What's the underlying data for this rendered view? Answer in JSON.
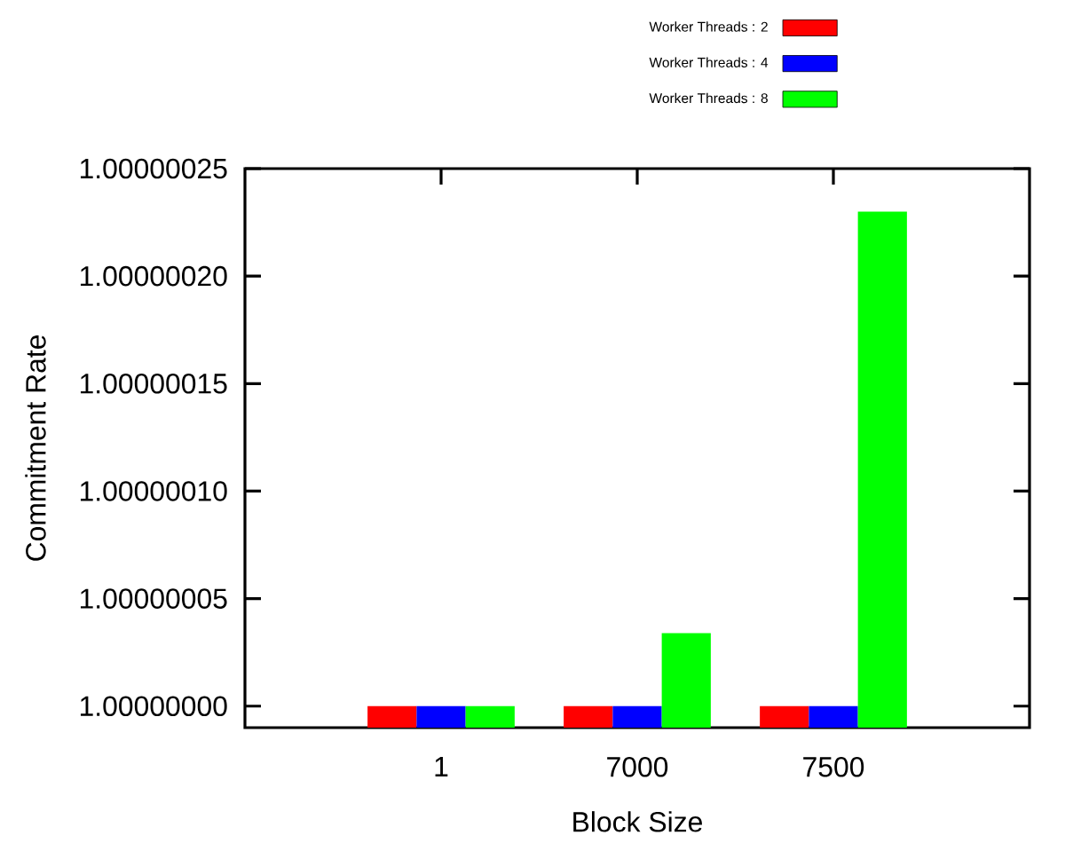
{
  "chart_data": {
    "type": "bar",
    "xlabel": "Block Size",
    "ylabel": "Commitment Rate",
    "categories": [
      "1",
      "7000",
      "7500"
    ],
    "series": [
      {
        "name": "Worker Threads : 2",
        "color": "#ff0000",
        "values": [
          1.0,
          1.0,
          1.0
        ]
      },
      {
        "name": "Worker Threads : 4",
        "color": "#0000ff",
        "values": [
          1.0,
          1.0,
          1.0
        ]
      },
      {
        "name": "Worker Threads : 8",
        "color": "#00ff00",
        "values": [
          1.0,
          1.000000034,
          1.00000023
        ]
      }
    ],
    "ylim": [
      0.99999999,
      1.00000025
    ],
    "yticks": [
      {
        "value": 1,
        "label": "1.00000000"
      },
      {
        "value": 1.00000005,
        "label": "1.00000005"
      },
      {
        "value": 1.0000001,
        "label": "1.00000010"
      },
      {
        "value": 1.00000015,
        "label": "1.00000015"
      },
      {
        "value": 1.0000002,
        "label": "1.00000020"
      },
      {
        "value": 1.00000025,
        "label": "1.00000025"
      }
    ],
    "legend": "top"
  }
}
